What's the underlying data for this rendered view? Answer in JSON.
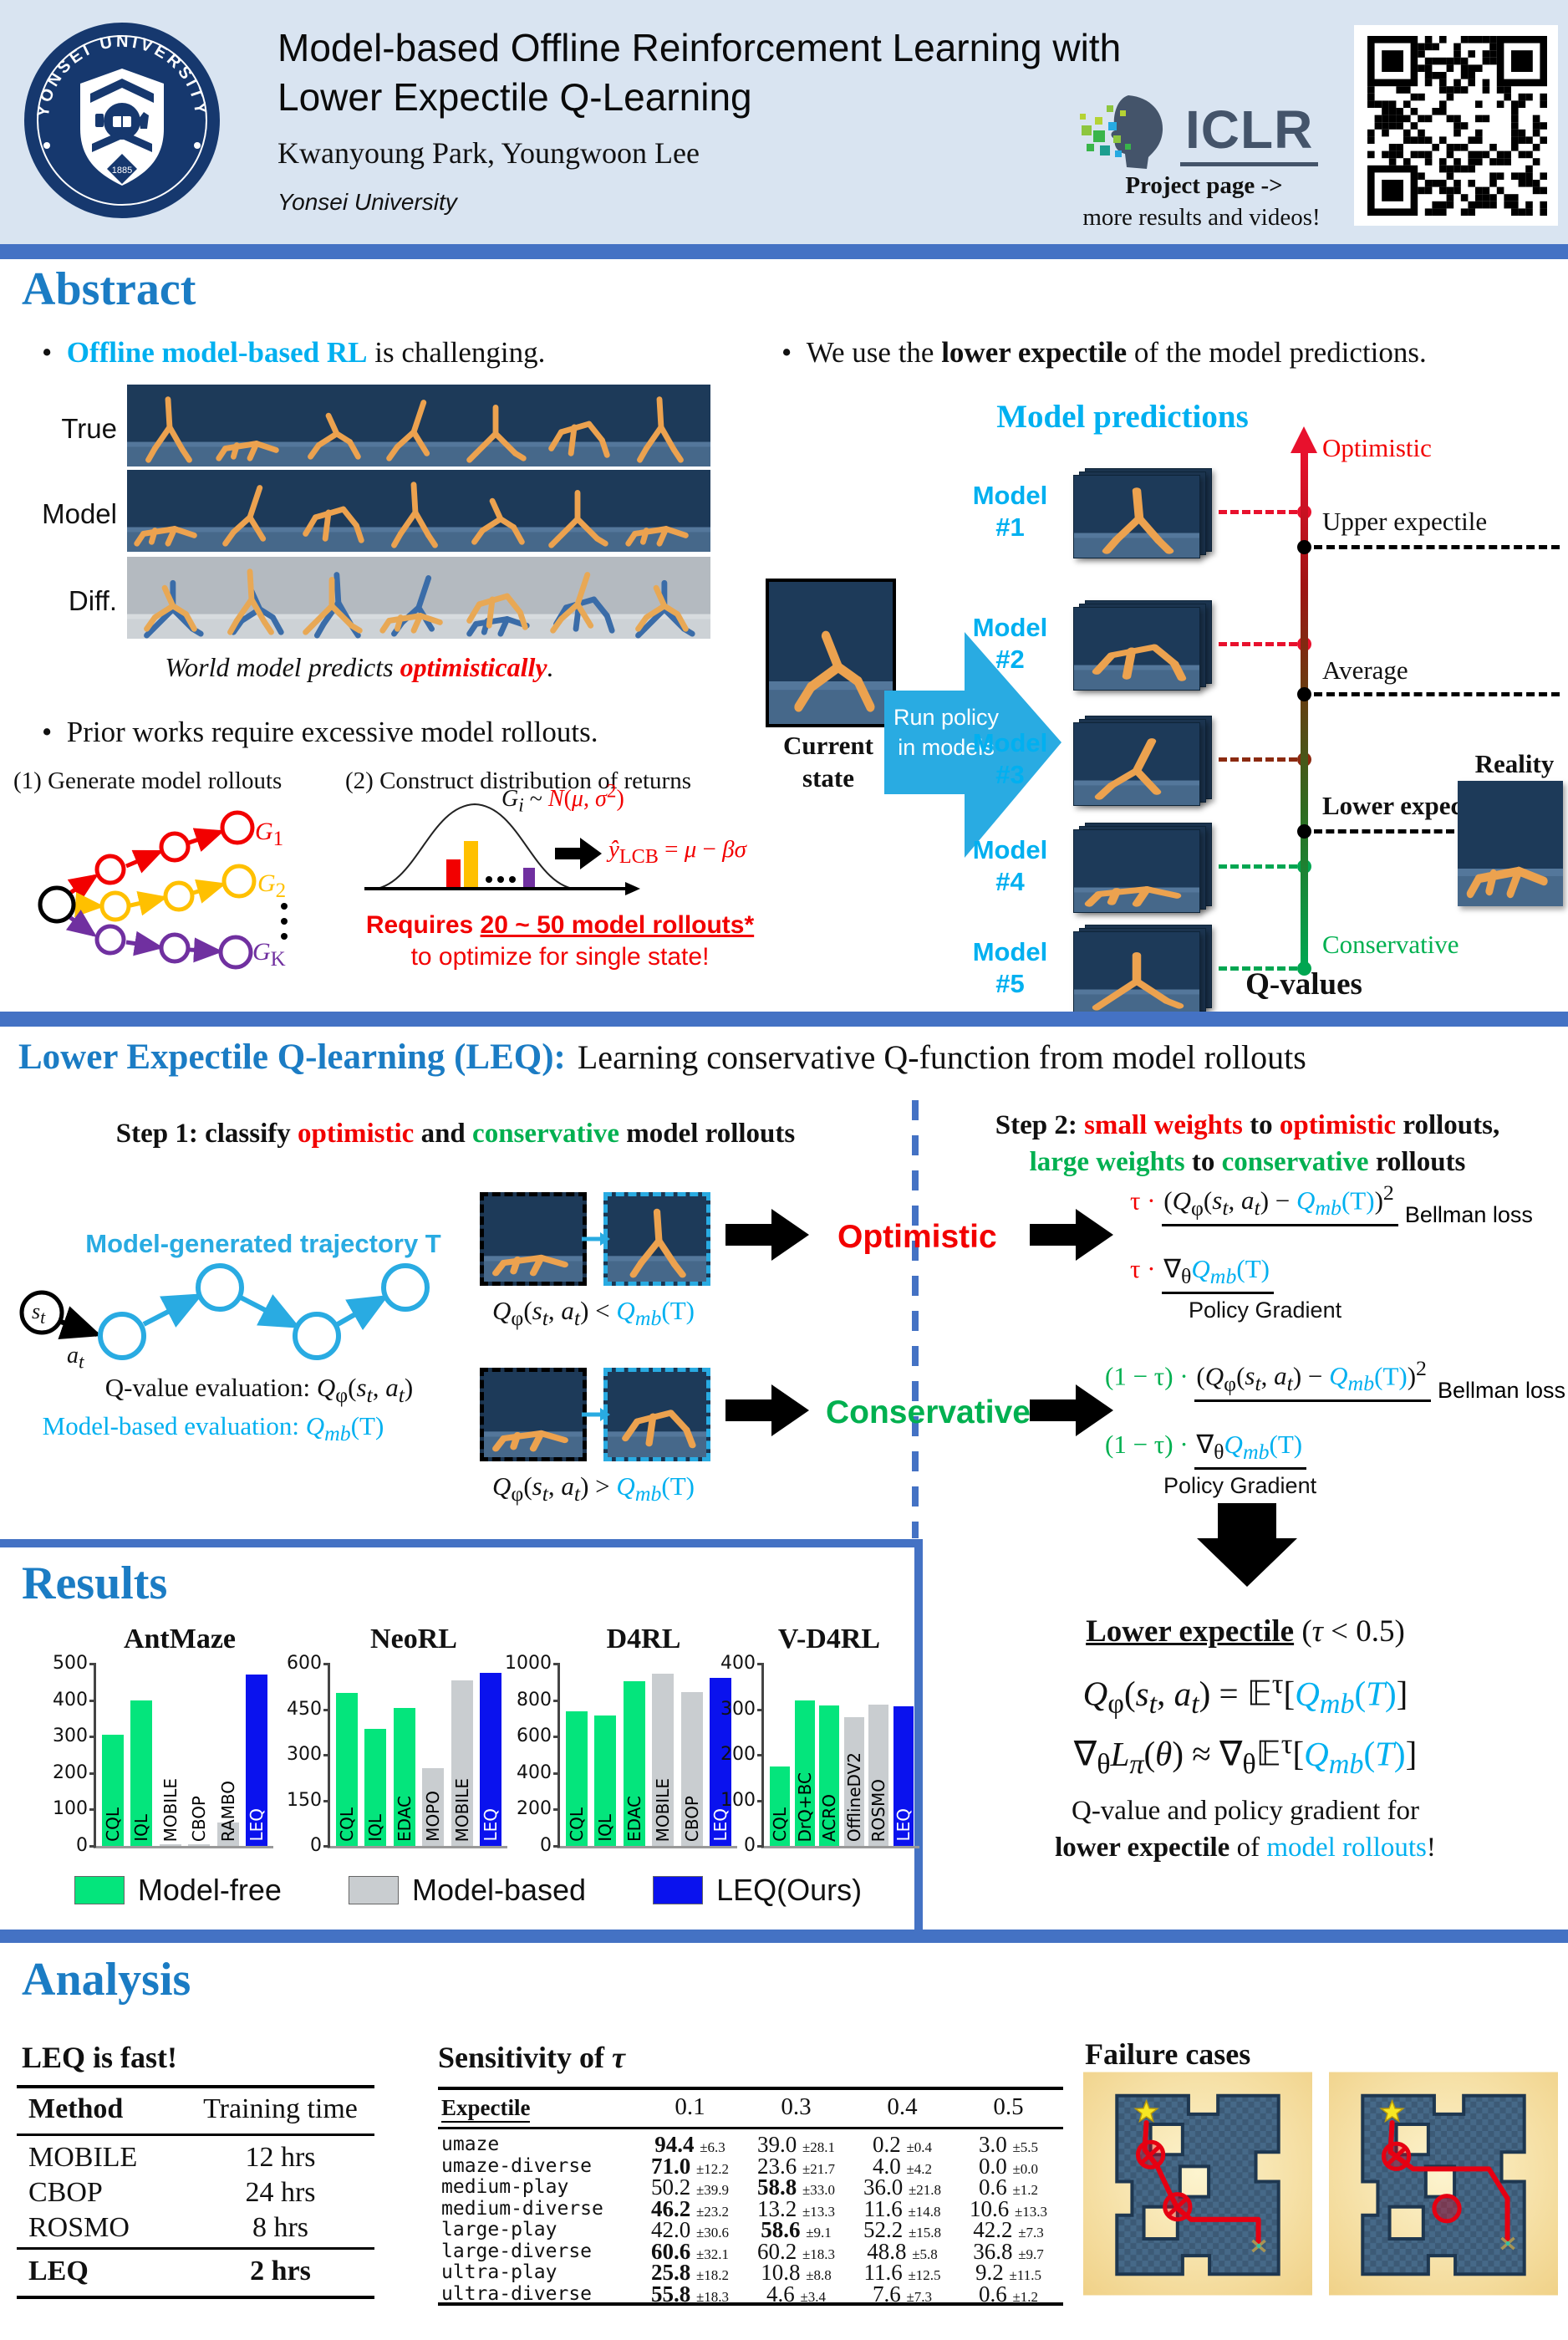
{
  "header": {
    "title1": "Model-based Offline Reinforcement Learning with",
    "title2": "Lower Expectile Q-Learning",
    "authors": "Kwanyoung Park, Youngwoon Lee",
    "affiliation": "Yonsei University",
    "logo": {
      "arc": "YONSEI UNIVERSITY",
      "year": "1885"
    },
    "iclr": {
      "wordmark": "ICLR",
      "project1": "Project page ->",
      "project2": "more results and videos!"
    }
  },
  "abstract": {
    "heading": "Abstract",
    "bullet1_html": "<span class='cyb'>Offline model-based RL</span> is challenging.",
    "rows": [
      "True",
      "Model",
      "Diff."
    ],
    "caption_html": "World model predicts <span class='redbi'>optimistically</span>.",
    "bullet2": "Prior works require excessive model rollouts.",
    "panel1": "(1) Generate model rollouts",
    "panel2": "(2) Construct distribution of returns",
    "g1_html": "<i>G</i><sub>1</sub>",
    "g2_html": "<i>G</i><sub>2</sub>",
    "gk_html": "<i>G</i><sub>K</sub>",
    "gi_html": "<i>G<sub>i</sub></i> ~ <span class='red'><i>N</i>(<i>&mu;</i>, <i>&sigma;</i><sup>2</sup>)</span>",
    "ylcb_html": "<span class='red'><i>&#375;</i><sub>LCB</sub> = <i>&mu;</i> &minus; <i>&beta;&sigma;</i></span>",
    "req1_html": "Requires <span class='ub'>20 ~ 50 model rollouts*</span>",
    "req2": "to optimize for single state!",
    "bullet3_html": "We use the <b>lower expectile</b> of the model predictions.",
    "pred_title": "Model predictions",
    "models": [
      [
        "Model",
        "#1"
      ],
      [
        "Model",
        "#2"
      ],
      [
        "Model",
        "#3"
      ],
      [
        "Model",
        "#4"
      ],
      [
        "Model",
        "#5"
      ]
    ],
    "axis": {
      "optimistic": "Optimistic",
      "upper": "Upper expectile",
      "average": "Average",
      "lower": "Lower expectile",
      "conservative": "Conservative",
      "qvalues": "Q-values",
      "reality": "Reality"
    },
    "current1": "Current",
    "current2": "state",
    "run1": "Run policy",
    "run2": "in models"
  },
  "leq": {
    "head_strong": "Lower Expectile Q-learning (LEQ):",
    "head_rest": "Learning conservative Q-function from model rollouts",
    "step1_html": "<b>Step 1: classify <span class='red'>optimistic</span> and <span class='grn'>conservative</span> model rollouts</b>",
    "step2a_html": "<b>Step 2: <span class='red'>small weights</span> to <span class='red'>optimistic</span> rollouts,</b>",
    "step2b_html": "<b><span class='grn'>large weights</span> to <span class='grn'>conservative</span> rollouts</b>",
    "traj": "Model-generated trajectory T",
    "st_html": "<i>s<sub>t</sub></i>",
    "at_html": "<i>a<sub>t</sub></i>",
    "qeval_html": "Q-value evaluation: <i>Q</i><sub>&phi;</sub>(<i>s<sub>t</sub></i>, <i>a<sub>t</sub></i>)",
    "mbeval_html": "<span class='cy'>Model-based evaluation: <i>Q<sub>mb</sub></i>(T)</span>",
    "lt_html": "<i>Q</i><sub>&phi;</sub>(<i>s<sub>t</sub></i>, <i>a<sub>t</sub></i>) &lt; <span class='cy'><i>Q<sub>mb</sub></i>(T)</span>",
    "gt_html": "<i>Q</i><sub>&phi;</sub>(<i>s<sub>t</sub></i>, <i>a<sub>t</sub></i>) &gt; <span class='cy'><i>Q<sub>mb</sub></i>(T)</span>",
    "opt": "Optimistic",
    "cons": "Conservative",
    "optf1_html": "<span class='red'>&tau; &middot;</span> <span class='fr'>(<i>Q</i><sub>&phi;</sub>(<i>s<sub>t</sub></i>, <i>a<sub>t</sub></i>) &minus; <span class='cy'><i>Q<sub>mb</sub></i>(T)</span>)<sup>2</sup></span><span class='flab'>Bellman loss</span>",
    "optf2_html": "<span class='red'>&tau; &middot;</span> <span class='fr'>&nabla;<sub>&theta;</sub><span class='cy'><i>Q<sub>mb</sub></i>(T)</span></span><div class='flab2'>Policy Gradient</div>",
    "consf1_html": "<span class='grn'>(1 &minus; &tau;) &middot;</span> <span class='fr'>(<i>Q</i><sub>&phi;</sub>(<i>s<sub>t</sub></i>, <i>a<sub>t</sub></i>) &minus; <span class='cy'><i>Q<sub>mb</sub></i>(T)</span>)<sup>2</sup></span><span class='flab'>Bellman loss</span>",
    "consf2_html": "<span class='grn'>(1 &minus; &tau;) &middot;</span> <span class='fr'>&nabla;<sub>&theta;</sub><span class='cy'><i>Q<sub>mb</sub></i>(T)</span></span><div class='flab2'>Policy Gradient</div>",
    "lower_html": "<b><span class='ub2'>Lower expectile</span></b> (<i>&tau;</i> &lt; 0.5)",
    "eq1_html": "<i>Q</i><sub>&phi;</sub>(<i>s<sub>t</sub></i>, <i>a<sub>t</sub></i>) = &#120124;<sup>&tau;</sup>[<span class='cy'><i>Q<sub>mb</sub></i>(<i>T</i>)</span>]",
    "eq2_html": "&nabla;<sub>&theta;</sub><i>L<sub>&pi;</sub></i>(<i>&theta;</i>) &asymp; &nabla;<sub>&theta;</sub>&#120124;<sup>&tau;</sup>[<span class='cy'><i>Q<sub>mb</sub></i>(<i>T</i>)</span>]",
    "cap1": "Q-value and policy gradient for",
    "cap2_html": "<b>lower expectile</b> of <span class='cy'>model rollouts</span>!"
  },
  "results": {
    "heading": "Results",
    "colors": {
      "mf": "#04e57c",
      "mb": "#c9cdd0",
      "ours": "#0a12ee"
    },
    "legend": [
      {
        "label": "Model-free",
        "group": "mf"
      },
      {
        "label": "Model-based",
        "group": "mb"
      },
      {
        "label": "LEQ(Ours)",
        "group": "ours"
      }
    ]
  },
  "chart_data": [
    {
      "type": "bar",
      "title": "AntMaze",
      "categories": [
        "CQL",
        "IQL",
        "MOBILE",
        "CBOP",
        "RAMBO",
        "LEQ"
      ],
      "values": [
        305,
        400,
        3,
        3,
        65,
        470
      ],
      "groups": [
        "mf",
        "mf",
        "mb",
        "mb",
        "mb",
        "ours"
      ],
      "ylim": [
        0,
        500
      ],
      "yticks": [
        0,
        100,
        200,
        300,
        400,
        500
      ],
      "xlabel": "",
      "ylabel": ""
    },
    {
      "type": "bar",
      "title": "NeoRL",
      "categories": [
        "CQL",
        "IQL",
        "EDAC",
        "MOPO",
        "MOBILE",
        "LEQ"
      ],
      "values": [
        505,
        385,
        455,
        255,
        545,
        570
      ],
      "groups": [
        "mf",
        "mf",
        "mf",
        "mb",
        "mb",
        "ours"
      ],
      "ylim": [
        0,
        600
      ],
      "yticks": [
        0,
        150,
        300,
        450,
        600
      ],
      "xlabel": "",
      "ylabel": ""
    },
    {
      "type": "bar",
      "title": "D4RL",
      "categories": [
        "CQL",
        "IQL",
        "EDAC",
        "MOBILE",
        "CBOP",
        "LEQ"
      ],
      "values": [
        740,
        715,
        905,
        945,
        845,
        920
      ],
      "groups": [
        "mf",
        "mf",
        "mf",
        "mb",
        "mb",
        "ours"
      ],
      "ylim": [
        0,
        1000
      ],
      "yticks": [
        0,
        200,
        400,
        600,
        800,
        1000
      ],
      "xlabel": "",
      "ylabel": ""
    },
    {
      "type": "bar",
      "title": "V-D4RL",
      "categories": [
        "CQL",
        "DrQ+BC",
        "ACRO",
        "OfflineDV2",
        "ROSMO",
        "LEQ"
      ],
      "values": [
        175,
        320,
        308,
        283,
        310,
        307
      ],
      "groups": [
        "mf",
        "mf",
        "mf",
        "mb",
        "mb",
        "ours"
      ],
      "ylim": [
        0,
        400
      ],
      "yticks": [
        0,
        100,
        200,
        300,
        400
      ],
      "xlabel": "",
      "ylabel": ""
    }
  ],
  "analysis": {
    "heading": "Analysis",
    "fast": {
      "title": "LEQ is fast!",
      "col1": "Method",
      "col2": "Training time",
      "rows": [
        [
          "MOBILE",
          "12 hrs"
        ],
        [
          "CBOP",
          "24 hrs"
        ],
        [
          "ROSMO",
          "8 hrs"
        ]
      ],
      "last": [
        "LEQ",
        "2 hrs"
      ]
    },
    "sensitivity": {
      "title_html": "Sensitivity of <i>&tau;</i>",
      "header": "Expectile",
      "columns": [
        "0.1",
        "0.3",
        "0.4",
        "0.5"
      ],
      "rows": [
        {
          "name": "umaze",
          "cells": [
            [
              "94.4",
              "6.3",
              1
            ],
            [
              "39.0",
              "28.1",
              0
            ],
            [
              "0.2",
              "0.4",
              0
            ],
            [
              "3.0",
              "5.5",
              0
            ]
          ]
        },
        {
          "name": "umaze-diverse",
          "cells": [
            [
              "71.0",
              "12.2",
              1
            ],
            [
              "23.6",
              "21.7",
              0
            ],
            [
              "4.0",
              "4.2",
              0
            ],
            [
              "0.0",
              "0.0",
              0
            ]
          ]
        },
        {
          "name": "medium-play",
          "cells": [
            [
              "50.2",
              "39.9",
              0
            ],
            [
              "58.8",
              "33.0",
              1
            ],
            [
              "36.0",
              "21.8",
              0
            ],
            [
              "0.6",
              "1.2",
              0
            ]
          ]
        },
        {
          "name": "medium-diverse",
          "cells": [
            [
              "46.2",
              "23.2",
              1
            ],
            [
              "13.2",
              "13.3",
              0
            ],
            [
              "11.6",
              "14.8",
              0
            ],
            [
              "10.6",
              "13.3",
              0
            ]
          ]
        },
        {
          "name": "large-play",
          "cells": [
            [
              "42.0",
              "30.6",
              0
            ],
            [
              "58.6",
              "9.1",
              1
            ],
            [
              "52.2",
              "15.8",
              0
            ],
            [
              "42.2",
              "7.3",
              0
            ]
          ]
        },
        {
          "name": "large-diverse",
          "cells": [
            [
              "60.6",
              "32.1",
              1
            ],
            [
              "60.2",
              "18.3",
              0
            ],
            [
              "48.8",
              "5.8",
              0
            ],
            [
              "36.8",
              "9.7",
              0
            ]
          ]
        },
        {
          "name": "ultra-play",
          "cells": [
            [
              "25.8",
              "18.2",
              1
            ],
            [
              "10.8",
              "8.8",
              0
            ],
            [
              "11.6",
              "12.5",
              0
            ],
            [
              "9.2",
              "11.5",
              0
            ]
          ]
        },
        {
          "name": "ultra-diverse",
          "cells": [
            [
              "55.8",
              "18.3",
              1
            ],
            [
              "4.6",
              "3.4",
              0
            ],
            [
              "7.6",
              "7.3",
              0
            ],
            [
              "0.6",
              "1.2",
              0
            ]
          ]
        }
      ]
    },
    "failure": {
      "title": "Failure cases"
    }
  }
}
